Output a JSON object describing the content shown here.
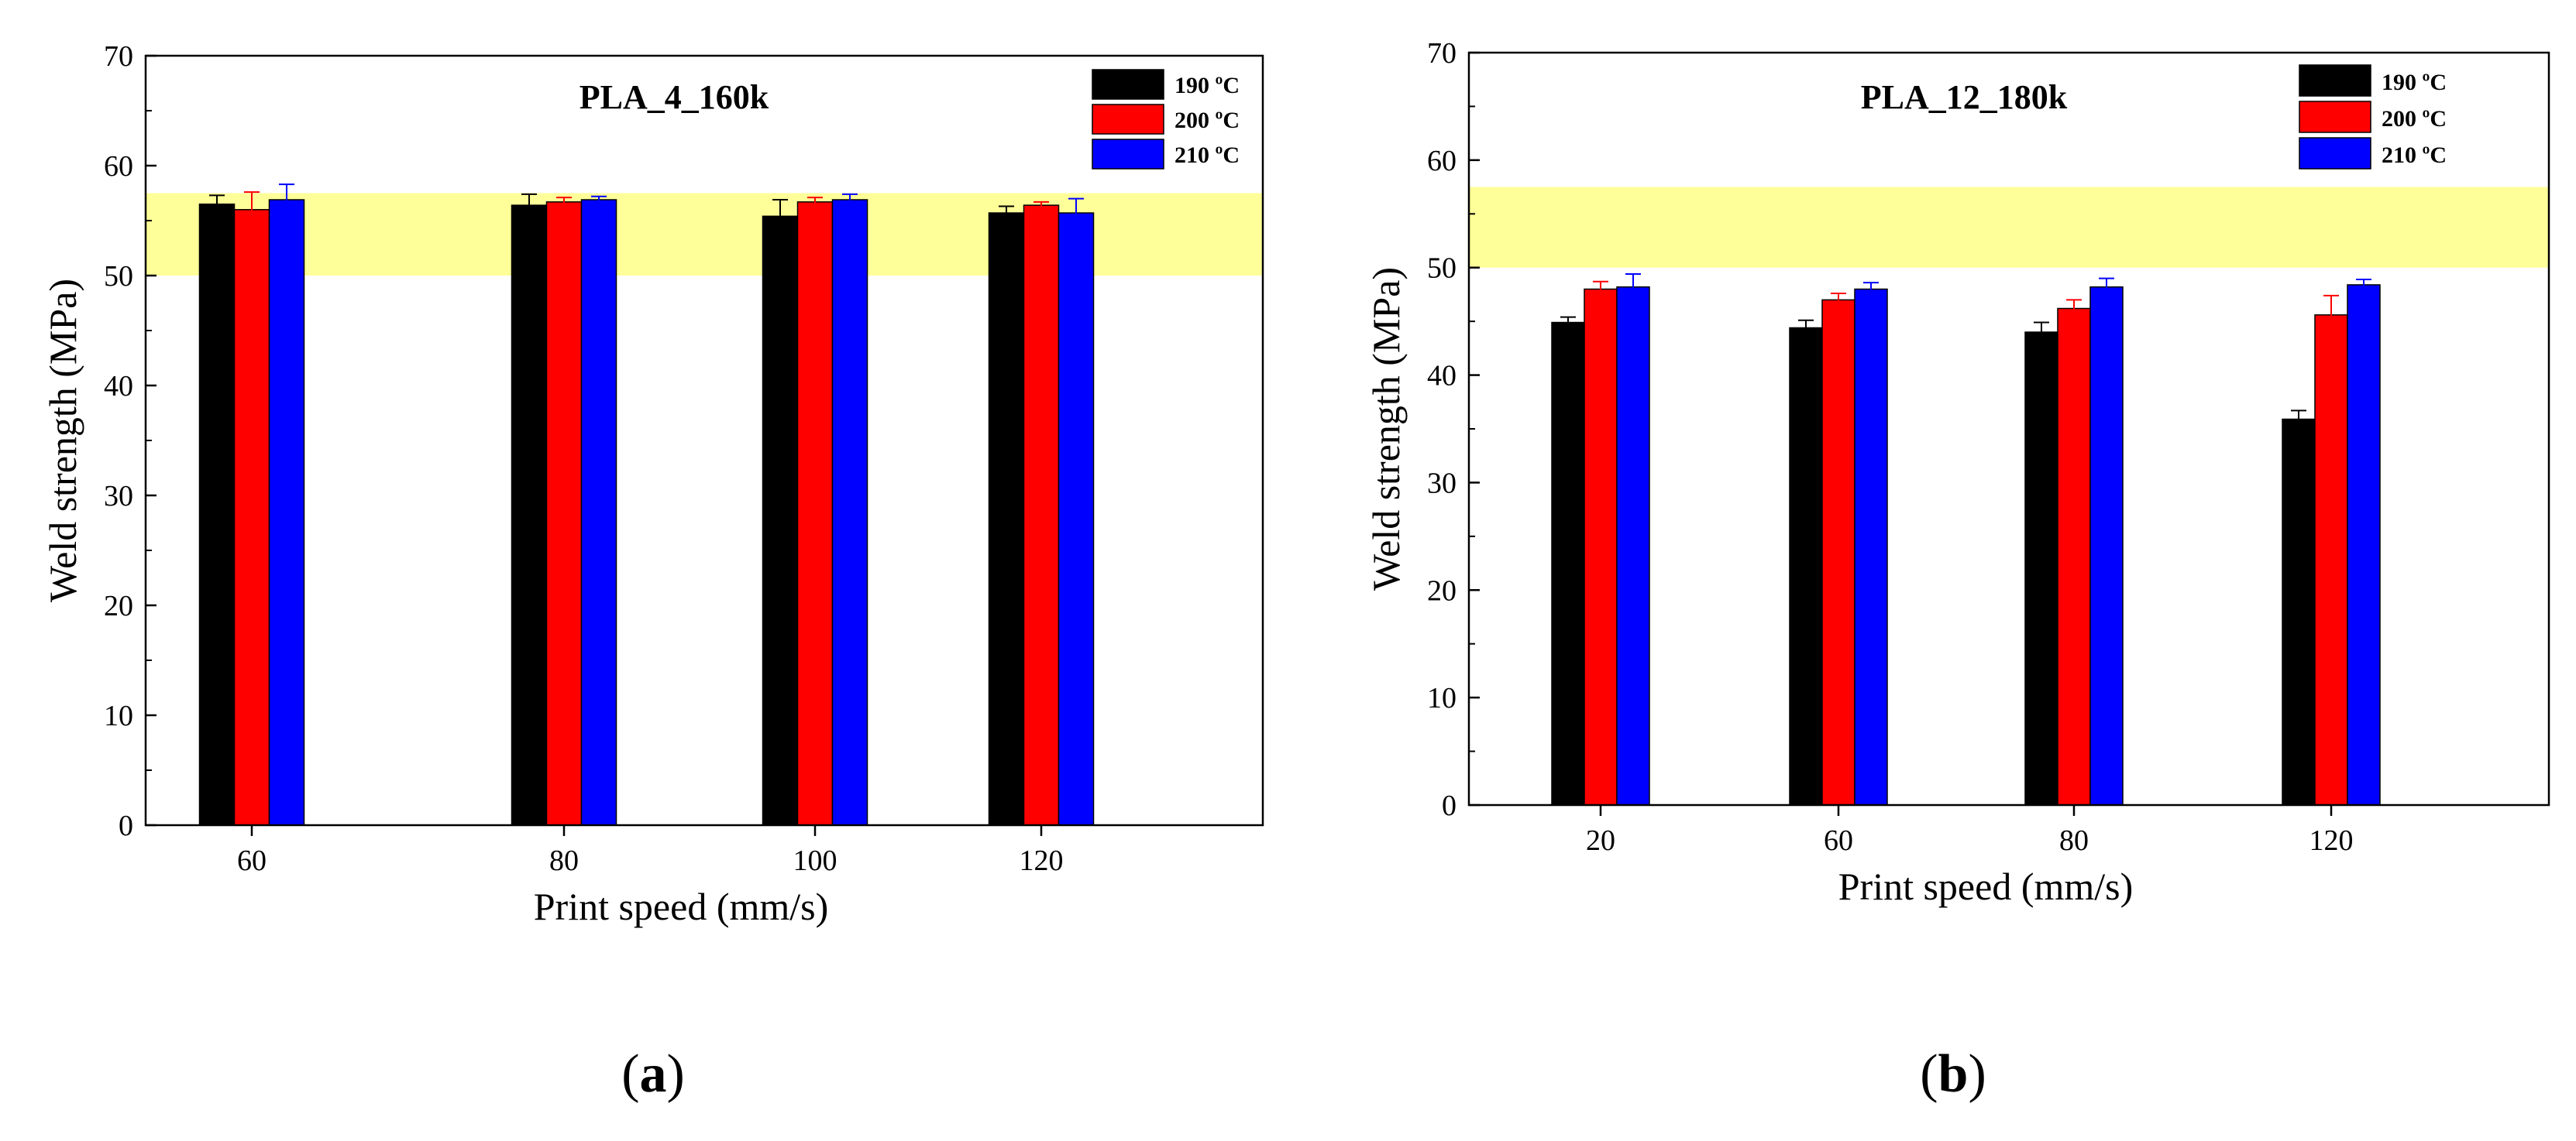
{
  "chart_data": [
    {
      "type": "bar",
      "title": "PLA_4_160k",
      "xlabel": "Print speed (mm/s)",
      "ylabel": "Weld strength (MPa)",
      "ylim": [
        0,
        70
      ],
      "yticks": [
        0,
        10,
        20,
        30,
        40,
        50,
        60,
        70
      ],
      "grid": false,
      "legend_position": "top-right",
      "reference_band": {
        "from": 50,
        "to": 57.5,
        "color": "#ffff99"
      },
      "categories": [
        "60",
        "80",
        "100",
        "120"
      ],
      "series": [
        {
          "name": "190 ºC",
          "color": "#000000",
          "values": [
            56.5,
            56.4,
            55.4,
            55.7
          ],
          "errors": [
            0.8,
            1.0,
            1.5,
            0.6
          ]
        },
        {
          "name": "200 ºC",
          "color": "#ff0000",
          "values": [
            56.0,
            56.7,
            56.7,
            56.4
          ],
          "errors": [
            1.6,
            0.4,
            0.4,
            0.3
          ]
        },
        {
          "name": "210 ºC",
          "color": "#0000ff",
          "values": [
            56.9,
            56.9,
            56.9,
            55.7
          ],
          "errors": [
            1.4,
            0.3,
            0.5,
            1.3
          ]
        }
      ],
      "panel_label": "a"
    },
    {
      "type": "bar",
      "title": "PLA_12_180k",
      "xlabel": "Print speed (mm/s)",
      "ylabel": "Weld strength (MPa)",
      "ylim": [
        0,
        70
      ],
      "yticks": [
        0,
        10,
        20,
        30,
        40,
        50,
        60,
        70
      ],
      "grid": false,
      "legend_position": "top-right",
      "reference_band": {
        "from": 50,
        "to": 57.5,
        "color": "#ffff99"
      },
      "categories": [
        "20",
        "60",
        "80",
        "120"
      ],
      "series": [
        {
          "name": "190 ºC",
          "color": "#000000",
          "values": [
            44.9,
            44.4,
            44.0,
            35.9
          ],
          "errors": [
            0.5,
            0.7,
            0.9,
            0.8
          ]
        },
        {
          "name": "200 ºC",
          "color": "#ff0000",
          "values": [
            48.0,
            47.0,
            46.2,
            45.6
          ],
          "errors": [
            0.7,
            0.6,
            0.8,
            1.8
          ]
        },
        {
          "name": "210 ºC",
          "color": "#0000ff",
          "values": [
            48.2,
            48.0,
            48.2,
            48.4
          ],
          "errors": [
            1.2,
            0.6,
            0.8,
            0.5
          ]
        }
      ],
      "panel_label": "b"
    }
  ]
}
